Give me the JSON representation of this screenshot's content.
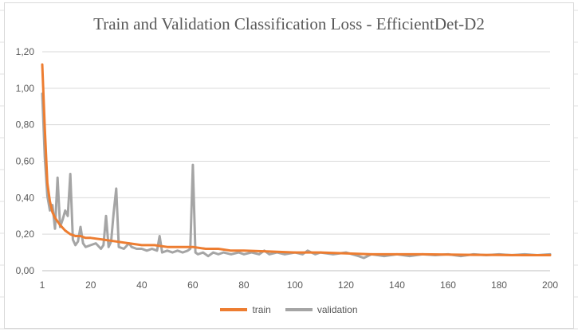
{
  "chart_data": {
    "type": "line",
    "title": "Train and Validation Classification Loss - EfficientDet-D2",
    "xlabel": "",
    "ylabel": "",
    "xlim": [
      1,
      200
    ],
    "ylim": [
      0,
      1.2
    ],
    "x_ticks": [
      1,
      20,
      40,
      60,
      80,
      100,
      120,
      140,
      160,
      180,
      200
    ],
    "y_ticks": [
      "0,00",
      "0,20",
      "0,40",
      "0,60",
      "0,80",
      "1,00",
      "1,20"
    ],
    "y_tick_values": [
      0,
      0.2,
      0.4,
      0.6,
      0.8,
      1.0,
      1.2
    ],
    "grid": "horizontal",
    "legend_position": "bottom",
    "series": [
      {
        "name": "train",
        "color": "#ed7d31",
        "points": [
          [
            1,
            1.13
          ],
          [
            2,
            0.78
          ],
          [
            3,
            0.48
          ],
          [
            4,
            0.38
          ],
          [
            5,
            0.32
          ],
          [
            6,
            0.29
          ],
          [
            7,
            0.27
          ],
          [
            8,
            0.25
          ],
          [
            10,
            0.22
          ],
          [
            12,
            0.2
          ],
          [
            14,
            0.19
          ],
          [
            16,
            0.19
          ],
          [
            18,
            0.18
          ],
          [
            20,
            0.18
          ],
          [
            25,
            0.17
          ],
          [
            30,
            0.16
          ],
          [
            35,
            0.15
          ],
          [
            40,
            0.14
          ],
          [
            45,
            0.14
          ],
          [
            50,
            0.13
          ],
          [
            55,
            0.13
          ],
          [
            60,
            0.13
          ],
          [
            65,
            0.12
          ],
          [
            70,
            0.12
          ],
          [
            75,
            0.11
          ],
          [
            80,
            0.11
          ],
          [
            90,
            0.105
          ],
          [
            100,
            0.1
          ],
          [
            110,
            0.1
          ],
          [
            120,
            0.095
          ],
          [
            130,
            0.09
          ],
          [
            140,
            0.09
          ],
          [
            150,
            0.09
          ],
          [
            160,
            0.088
          ],
          [
            170,
            0.087
          ],
          [
            180,
            0.086
          ],
          [
            190,
            0.085
          ],
          [
            200,
            0.085
          ]
        ]
      },
      {
        "name": "validation",
        "color": "#a5a5a5",
        "points": [
          [
            1,
            0.97
          ],
          [
            2,
            0.62
          ],
          [
            3,
            0.41
          ],
          [
            4,
            0.33
          ],
          [
            5,
            0.36
          ],
          [
            6,
            0.23
          ],
          [
            7,
            0.51
          ],
          [
            8,
            0.24
          ],
          [
            9,
            0.28
          ],
          [
            10,
            0.33
          ],
          [
            11,
            0.3
          ],
          [
            12,
            0.53
          ],
          [
            13,
            0.17
          ],
          [
            14,
            0.14
          ],
          [
            15,
            0.16
          ],
          [
            16,
            0.24
          ],
          [
            17,
            0.15
          ],
          [
            18,
            0.13
          ],
          [
            20,
            0.14
          ],
          [
            22,
            0.15
          ],
          [
            24,
            0.12
          ],
          [
            25,
            0.14
          ],
          [
            26,
            0.3
          ],
          [
            27,
            0.13
          ],
          [
            28,
            0.16
          ],
          [
            29,
            0.32
          ],
          [
            30,
            0.45
          ],
          [
            31,
            0.13
          ],
          [
            33,
            0.12
          ],
          [
            35,
            0.15
          ],
          [
            36,
            0.13
          ],
          [
            38,
            0.12
          ],
          [
            40,
            0.12
          ],
          [
            42,
            0.11
          ],
          [
            44,
            0.12
          ],
          [
            46,
            0.11
          ],
          [
            47,
            0.19
          ],
          [
            48,
            0.1
          ],
          [
            50,
            0.11
          ],
          [
            52,
            0.1
          ],
          [
            54,
            0.11
          ],
          [
            56,
            0.1
          ],
          [
            58,
            0.11
          ],
          [
            59,
            0.12
          ],
          [
            60,
            0.58
          ],
          [
            61,
            0.1
          ],
          [
            62,
            0.09
          ],
          [
            64,
            0.1
          ],
          [
            66,
            0.08
          ],
          [
            68,
            0.1
          ],
          [
            70,
            0.09
          ],
          [
            72,
            0.1
          ],
          [
            75,
            0.09
          ],
          [
            78,
            0.1
          ],
          [
            80,
            0.09
          ],
          [
            83,
            0.1
          ],
          [
            86,
            0.09
          ],
          [
            88,
            0.11
          ],
          [
            90,
            0.09
          ],
          [
            93,
            0.1
          ],
          [
            96,
            0.09
          ],
          [
            100,
            0.1
          ],
          [
            103,
            0.09
          ],
          [
            105,
            0.11
          ],
          [
            108,
            0.09
          ],
          [
            110,
            0.1
          ],
          [
            115,
            0.09
          ],
          [
            120,
            0.1
          ],
          [
            125,
            0.08
          ],
          [
            127,
            0.07
          ],
          [
            130,
            0.09
          ],
          [
            135,
            0.08
          ],
          [
            140,
            0.09
          ],
          [
            145,
            0.08
          ],
          [
            150,
            0.09
          ],
          [
            155,
            0.085
          ],
          [
            160,
            0.09
          ],
          [
            165,
            0.08
          ],
          [
            170,
            0.09
          ],
          [
            175,
            0.085
          ],
          [
            180,
            0.09
          ],
          [
            185,
            0.085
          ],
          [
            190,
            0.09
          ],
          [
            195,
            0.085
          ],
          [
            200,
            0.09
          ]
        ]
      }
    ]
  }
}
